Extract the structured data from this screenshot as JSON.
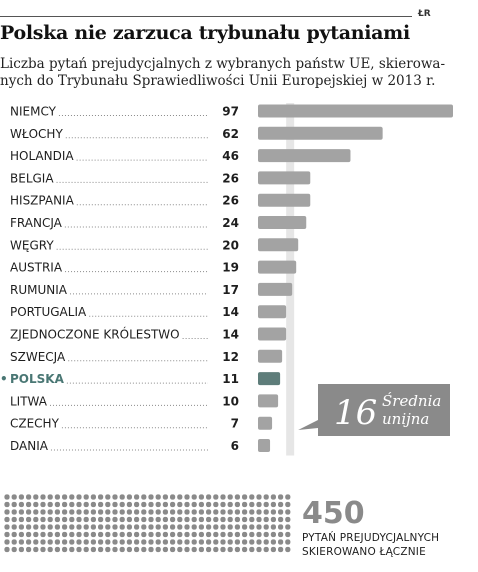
{
  "header": {
    "tag": "ŁR"
  },
  "chart_data": {
    "type": "bar",
    "orientation": "horizontal",
    "title": "Polska nie zarzuca trybunału pytaniami",
    "subtitle_lines": [
      "Liczba pytań prejudycjalnych z wybranych państw UE, skierowa-",
      "nych do Trybunału Sprawiedliwości Unii Europejskiej w 2013 r."
    ],
    "categories": [
      "NIEMCY",
      "WŁOCHY",
      "HOLANDIA",
      "BELGIA",
      "HISZPANIA",
      "FRANCJA",
      "WĘGRY",
      "AUSTRIA",
      "RUMUNIA",
      "PORTUGALIA",
      "ZJEDNOCZONE KRÓLESTWO",
      "SZWECJA",
      "POLSKA",
      "LITWA",
      "CZECHY",
      "DANIA"
    ],
    "values": [
      97,
      62,
      46,
      26,
      26,
      24,
      20,
      19,
      17,
      14,
      14,
      12,
      11,
      10,
      7,
      6
    ],
    "highlight": "POLSKA",
    "reference": {
      "value": 16,
      "label_line1": "Średnia",
      "label_line2": "unijna"
    },
    "total": {
      "value": "450",
      "caption_line1": "PYTAŃ PREJUDYCJALNYCH",
      "caption_line2": "SKIEROWANO ŁĄCZNIE",
      "dot_count": 450
    },
    "colors": {
      "bar": "#a3a3a3",
      "bar_highlight": "#5e7d7a",
      "reference_band": "#e6e6e6",
      "callout_bg": "#8a8a8a",
      "dots": "#8a8a8a",
      "highlight_text": "#4a7774"
    }
  }
}
